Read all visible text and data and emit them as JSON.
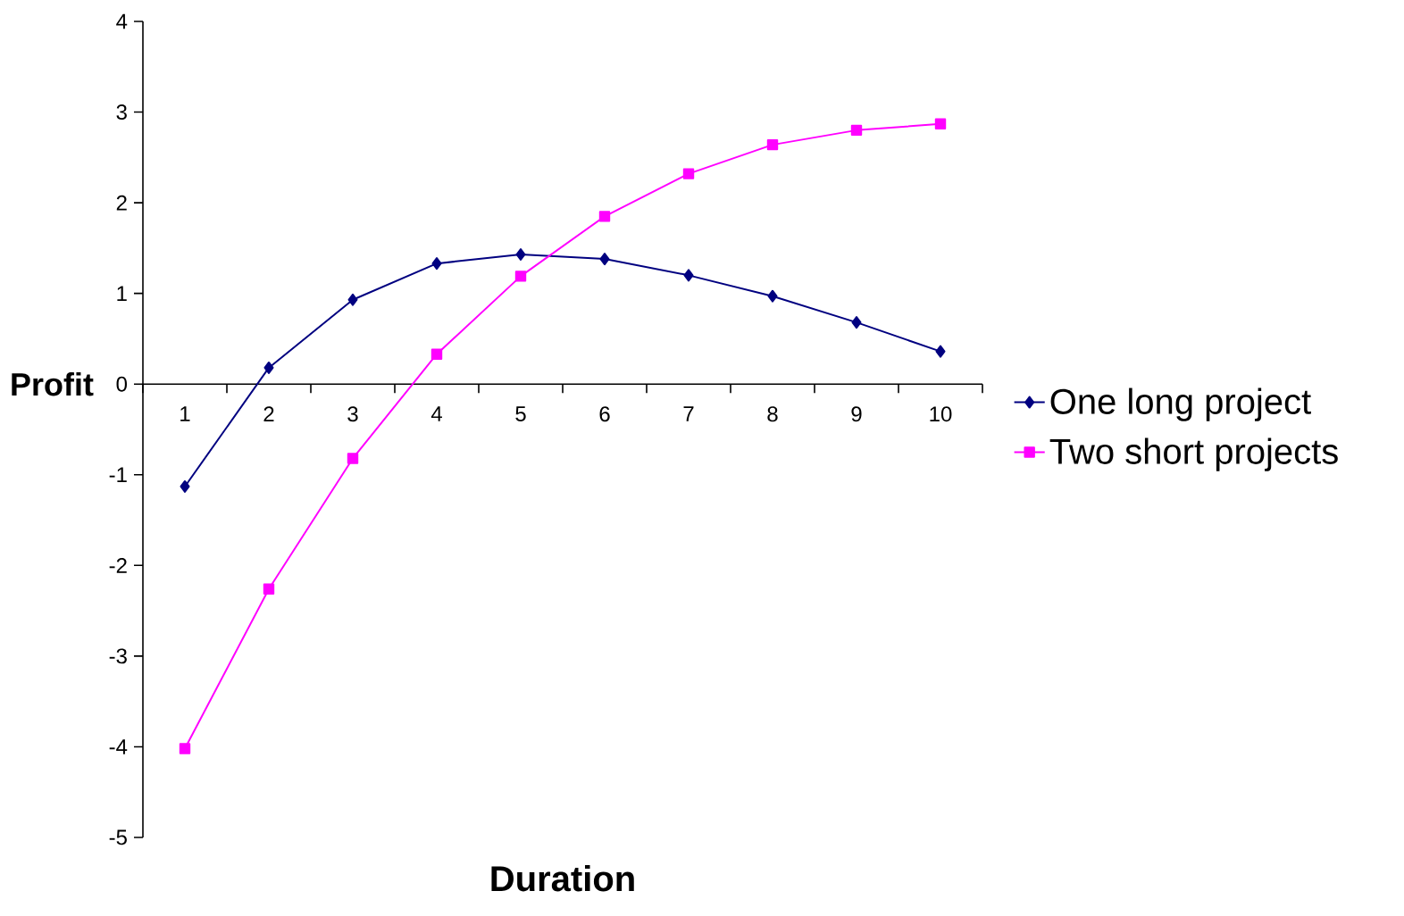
{
  "chart_data": {
    "type": "line",
    "xlabel": "Duration",
    "ylabel": "Profit",
    "categories": [
      "1",
      "2",
      "3",
      "4",
      "5",
      "6",
      "7",
      "8",
      "9",
      "10"
    ],
    "series": [
      {
        "name": "One long project",
        "color": "#000080",
        "marker": "diamond",
        "values": [
          -1.13,
          0.18,
          0.93,
          1.33,
          1.43,
          1.38,
          1.2,
          0.97,
          0.68,
          0.36
        ]
      },
      {
        "name": "Two short projects",
        "color": "#ff00ff",
        "marker": "square",
        "values": [
          -4.02,
          -2.26,
          -0.82,
          0.33,
          1.19,
          1.85,
          2.32,
          2.64,
          2.8,
          2.87
        ]
      }
    ],
    "ylim": [
      -5,
      4
    ],
    "yticks": [
      -5,
      -4,
      -3,
      -2,
      -1,
      0,
      1,
      2,
      3,
      4
    ],
    "legend": "right",
    "grid": false,
    "line_style": "solid"
  }
}
